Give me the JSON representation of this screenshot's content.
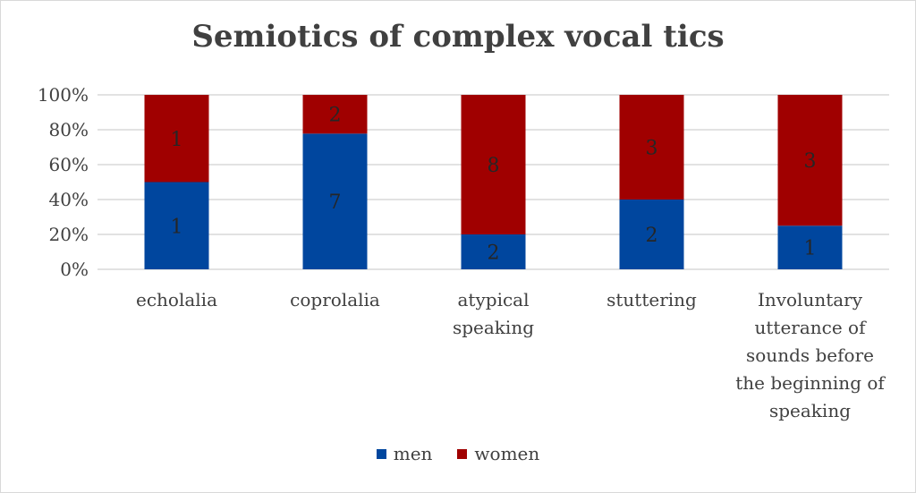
{
  "chart_data": {
    "type": "bar",
    "stacked": "percent",
    "title": "Semiotics of complex vocal tics",
    "categories": [
      "echolalia",
      "coprolalia",
      "atypical speaking",
      "stuttering",
      "Involuntary utterance of sounds before the beginning of speaking"
    ],
    "category_lines": [
      [
        "echolalia"
      ],
      [
        "coprolalia"
      ],
      [
        "atypical",
        "speaking"
      ],
      [
        "stuttering"
      ],
      [
        "Involuntary",
        "utterance of",
        "sounds before",
        "the beginning of",
        "speaking"
      ]
    ],
    "series": [
      {
        "name": "men",
        "values": [
          1,
          7,
          2,
          2,
          1
        ],
        "color": "#00469E"
      },
      {
        "name": "women",
        "values": [
          1,
          2,
          8,
          3,
          3
        ],
        "color": "#A00000"
      }
    ],
    "yticks": [
      "0%",
      "20%",
      "40%",
      "60%",
      "80%",
      "100%"
    ],
    "ylim": [
      0,
      100
    ],
    "grid": true,
    "legend": "bottom"
  }
}
